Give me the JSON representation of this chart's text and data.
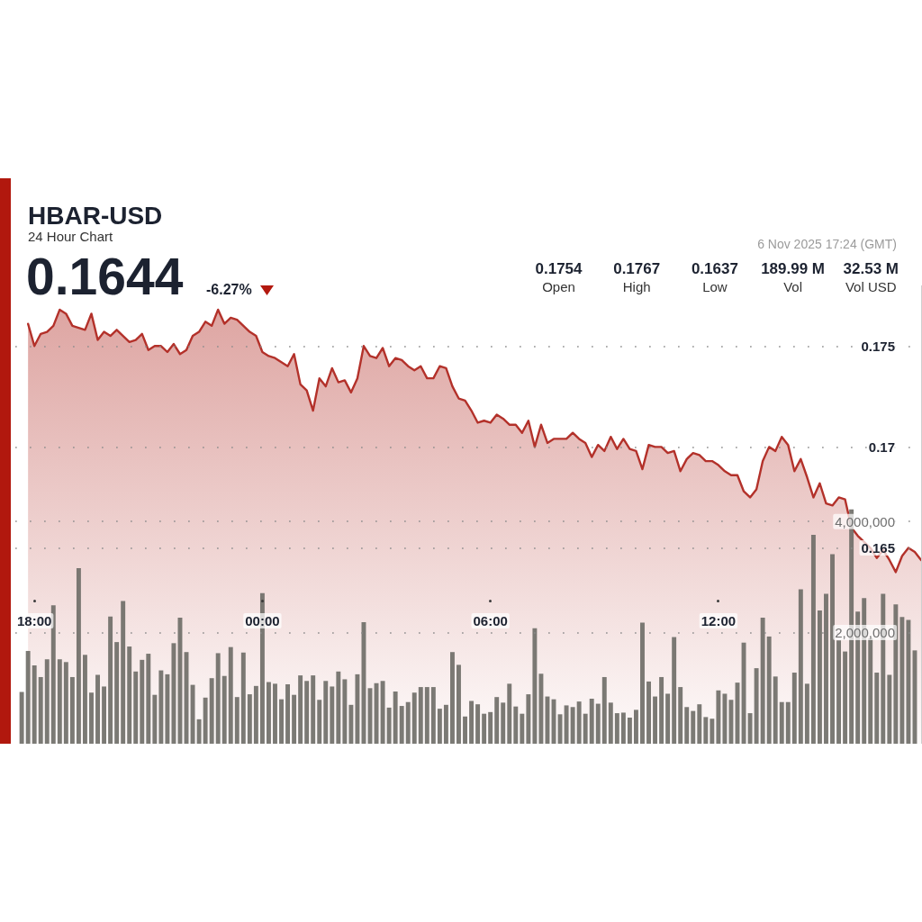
{
  "chart_data": {
    "type": "area",
    "title": "HBAR-USD",
    "subtitle": "24 Hour Chart",
    "annotations": [
      "0.1644",
      "-6.27%",
      "6 Nov 2025 17:24 (GMT)",
      "0.1754",
      "Open",
      "0.1767",
      "High",
      "0.1637",
      "Low",
      "189.99 M",
      "Vol",
      "32.53 M",
      "Vol USD"
    ],
    "x": [
      "2025-11-05T17:40",
      "2025-11-05T17:50",
      "2025-11-05T18:00",
      "2025-11-05T18:10",
      "2025-11-05T18:20",
      "2025-11-05T18:30",
      "2025-11-05T18:40",
      "2025-11-05T18:50",
      "2025-11-05T19:00",
      "2025-11-05T19:10",
      "2025-11-05T19:20",
      "2025-11-05T19:30",
      "2025-11-05T19:40",
      "2025-11-05T19:50",
      "2025-11-05T20:00",
      "2025-11-05T20:10",
      "2025-11-05T20:20",
      "2025-11-05T20:30",
      "2025-11-05T20:40",
      "2025-11-05T20:50",
      "2025-11-05T21:00",
      "2025-11-05T21:10",
      "2025-11-05T21:20",
      "2025-11-05T21:30",
      "2025-11-05T21:40",
      "2025-11-05T21:50",
      "2025-11-05T22:00",
      "2025-11-05T22:10",
      "2025-11-05T22:20",
      "2025-11-05T22:30",
      "2025-11-05T22:40",
      "2025-11-05T22:50",
      "2025-11-05T23:00",
      "2025-11-05T23:10",
      "2025-11-05T23:20",
      "2025-11-05T23:30",
      "2025-11-05T23:40",
      "2025-11-05T23:50",
      "2025-11-06T00:00",
      "2025-11-06T00:10",
      "2025-11-06T00:20",
      "2025-11-06T00:30",
      "2025-11-06T00:40",
      "2025-11-06T00:50",
      "2025-11-06T01:00",
      "2025-11-06T01:10",
      "2025-11-06T01:20",
      "2025-11-06T01:30",
      "2025-11-06T01:40",
      "2025-11-06T01:50",
      "2025-11-06T02:00",
      "2025-11-06T02:10",
      "2025-11-06T02:20",
      "2025-11-06T02:30",
      "2025-11-06T02:40",
      "2025-11-06T02:50",
      "2025-11-06T03:00",
      "2025-11-06T03:10",
      "2025-11-06T03:20",
      "2025-11-06T03:30",
      "2025-11-06T03:40",
      "2025-11-06T03:50",
      "2025-11-06T04:00",
      "2025-11-06T04:10",
      "2025-11-06T04:20",
      "2025-11-06T04:30",
      "2025-11-06T04:40",
      "2025-11-06T04:50",
      "2025-11-06T05:00",
      "2025-11-06T05:10",
      "2025-11-06T05:20",
      "2025-11-06T05:30",
      "2025-11-06T05:40",
      "2025-11-06T05:50",
      "2025-11-06T06:00",
      "2025-11-06T06:10",
      "2025-11-06T06:20",
      "2025-11-06T06:30",
      "2025-11-06T06:40",
      "2025-11-06T06:50",
      "2025-11-06T07:00",
      "2025-11-06T07:10",
      "2025-11-06T07:20",
      "2025-11-06T07:30",
      "2025-11-06T07:40",
      "2025-11-06T07:50",
      "2025-11-06T08:00",
      "2025-11-06T08:10",
      "2025-11-06T08:20",
      "2025-11-06T08:30",
      "2025-11-06T08:40",
      "2025-11-06T08:50",
      "2025-11-06T09:00",
      "2025-11-06T09:10",
      "2025-11-06T09:20",
      "2025-11-06T09:30",
      "2025-11-06T09:40",
      "2025-11-06T09:50",
      "2025-11-06T10:00",
      "2025-11-06T10:10",
      "2025-11-06T10:20",
      "2025-11-06T10:30",
      "2025-11-06T10:40",
      "2025-11-06T10:50",
      "2025-11-06T11:00",
      "2025-11-06T11:10",
      "2025-11-06T11:20",
      "2025-11-06T11:30",
      "2025-11-06T11:40",
      "2025-11-06T11:50",
      "2025-11-06T12:00",
      "2025-11-06T12:10",
      "2025-11-06T12:20",
      "2025-11-06T12:30",
      "2025-11-06T12:40",
      "2025-11-06T12:50",
      "2025-11-06T13:00",
      "2025-11-06T13:10",
      "2025-11-06T13:20",
      "2025-11-06T13:30",
      "2025-11-06T13:40",
      "2025-11-06T13:50",
      "2025-11-06T14:00",
      "2025-11-06T14:10",
      "2025-11-06T14:20",
      "2025-11-06T14:30",
      "2025-11-06T14:40",
      "2025-11-06T14:50",
      "2025-11-06T15:00",
      "2025-11-06T15:10",
      "2025-11-06T15:20",
      "2025-11-06T15:30",
      "2025-11-06T15:40",
      "2025-11-06T15:50",
      "2025-11-06T16:00",
      "2025-11-06T16:10",
      "2025-11-06T16:20",
      "2025-11-06T16:30",
      "2025-11-06T16:40",
      "2025-11-06T16:50",
      "2025-11-06T17:00",
      "2025-11-06T17:10",
      "2025-11-06T17:20"
    ],
    "series": [
      {
        "color": "#b3312a",
        "values": [
          null,
          0.1761,
          0.175,
          0.1756,
          0.1757,
          0.176,
          0.1768,
          0.1766,
          0.176,
          0.1759,
          0.1758,
          0.1766,
          0.1753,
          0.1757,
          0.1755,
          0.1758,
          0.1755,
          0.1752,
          0.1753,
          0.1756,
          0.1748,
          0.175,
          0.175,
          0.1747,
          0.1751,
          0.1746,
          0.1748,
          0.1755,
          0.1757,
          0.1762,
          0.176,
          0.1768,
          0.1761,
          0.1764,
          0.1763,
          0.176,
          0.1757,
          0.1755,
          0.1747,
          0.1745,
          0.1744,
          0.1742,
          0.174,
          0.1746,
          0.1731,
          0.1728,
          0.1718,
          0.1734,
          0.173,
          0.1739,
          0.1732,
          0.1733,
          0.1727,
          0.1734,
          0.175,
          0.1745,
          0.1744,
          0.1749,
          0.174,
          0.1744,
          0.1743,
          0.174,
          0.1738,
          0.174,
          0.1734,
          0.1734,
          0.174,
          0.1739,
          0.173,
          0.1724,
          0.1723,
          0.1718,
          0.1712,
          0.1713,
          0.1712,
          0.1716,
          0.1714,
          0.1711,
          0.1711,
          0.1707,
          0.1713,
          0.17,
          0.1711,
          0.1702,
          0.1704,
          0.1704,
          0.1704,
          0.1707,
          0.1704,
          0.1702,
          0.1695,
          0.1701,
          0.1698,
          0.1705,
          0.1699,
          0.1704,
          0.1699,
          0.1698,
          0.1689,
          0.1701,
          0.17,
          0.17,
          0.1697,
          0.1698,
          0.1688,
          0.1694,
          0.1697,
          0.1696,
          0.1693,
          0.1693,
          0.1691,
          0.1688,
          0.1686,
          0.1686,
          0.1678,
          0.1675,
          0.1679,
          0.1693,
          0.17,
          0.1698,
          0.1705,
          0.1701,
          0.1688,
          0.1694,
          0.1685,
          0.1675,
          0.1682,
          0.1672,
          0.1671,
          0.1675,
          0.1674,
          0.166,
          0.1656,
          0.1653,
          0.165,
          0.1645,
          0.1649,
          0.1644,
          0.1638,
          0.1646,
          0.165,
          0.1648,
          0.1644
        ]
      },
      {
        "type": "bar",
        "axis": "y2",
        "color": "#6d6b66",
        "values": [
          930000,
          1670000,
          1410000,
          1200000,
          1520000,
          2490000,
          1520000,
          1470000,
          1200000,
          3160000,
          1600000,
          920000,
          1240000,
          1030000,
          2290000,
          1830000,
          2570000,
          1750000,
          1300000,
          1510000,
          1620000,
          880000,
          1320000,
          1250000,
          1810000,
          2270000,
          1650000,
          1060000,
          440000,
          830000,
          1180000,
          1630000,
          1220000,
          1740000,
          840000,
          1640000,
          890000,
          1040000,
          2710000,
          1110000,
          1080000,
          800000,
          1070000,
          880000,
          1230000,
          1130000,
          1230000,
          790000,
          1130000,
          1030000,
          1300000,
          1160000,
          700000,
          1250000,
          2190000,
          1000000,
          1090000,
          1130000,
          650000,
          940000,
          680000,
          750000,
          920000,
          1020000,
          1020000,
          1020000,
          630000,
          700000,
          1650000,
          1420000,
          490000,
          770000,
          710000,
          540000,
          570000,
          840000,
          740000,
          1080000,
          670000,
          540000,
          890000,
          2080000,
          1260000,
          850000,
          800000,
          530000,
          690000,
          660000,
          760000,
          540000,
          810000,
          720000,
          1200000,
          740000,
          550000,
          560000,
          470000,
          610000,
          2180000,
          1120000,
          850000,
          1200000,
          900000,
          1920000,
          1020000,
          660000,
          590000,
          710000,
          480000,
          450000,
          960000,
          900000,
          790000,
          1100000,
          1820000,
          550000,
          1360000,
          2270000,
          1930000,
          1210000,
          750000,
          750000,
          1280000,
          2780000,
          1080000,
          3760000,
          2400000,
          2700000,
          3410000,
          1860000,
          1660000,
          4220000,
          2380000,
          2620000,
          1900000,
          1280000,
          2700000,
          1240000,
          2510000,
          2280000,
          2230000,
          1680000,
          null
        ]
      }
    ],
    "xlim": [
      "2025-11-05T17:30",
      "2025-11-06T17:20"
    ],
    "xticks": [
      {
        "value": "2025-11-05T18:00",
        "label": "18:00"
      },
      {
        "value": "2025-11-06T00:00",
        "label": "00:00"
      },
      {
        "value": "2025-11-06T06:00",
        "label": "06:00"
      },
      {
        "value": "2025-11-06T12:00",
        "label": "12:00"
      }
    ],
    "ylim": [
      0.1553,
      0.178
    ],
    "yticks": [
      0.165,
      0.17,
      0.175
    ],
    "y2lim": [
      0,
      8250000
    ],
    "y2ticks": [
      {
        "value": 2000000,
        "label": "2,000,000"
      },
      {
        "value": 4000000,
        "label": "4,000,000"
      }
    ],
    "grid": "y",
    "marker": "none"
  }
}
